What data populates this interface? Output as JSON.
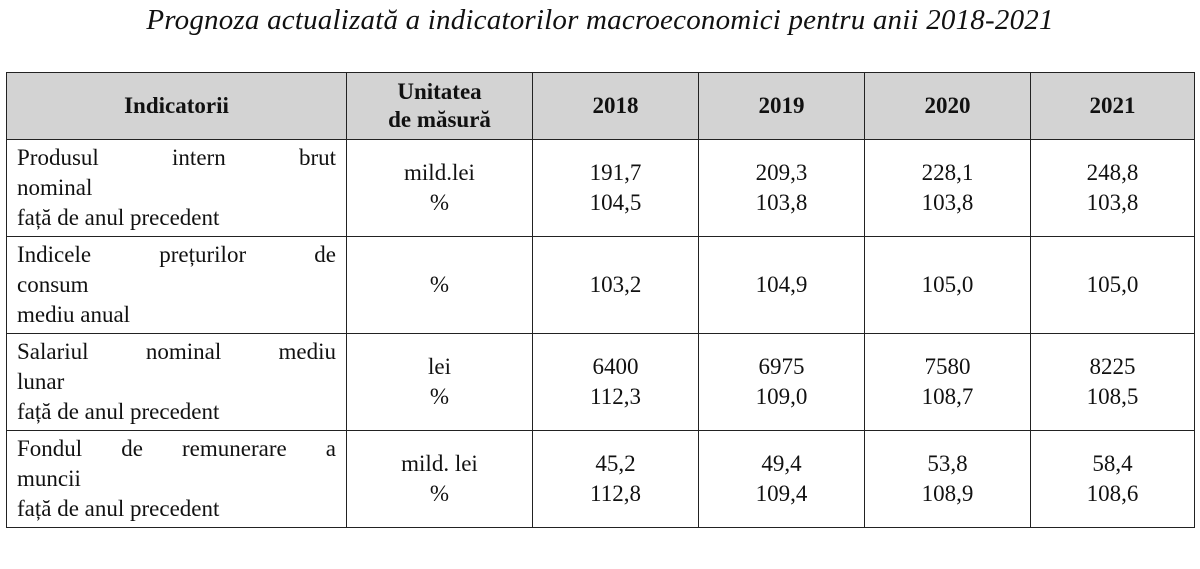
{
  "title": "Prognoza actualizată a indicatorilor macroeconomici pentru anii 2018-2021",
  "table": {
    "headers": {
      "indicator": "Indicatorii",
      "unit_line1": "Unitatea",
      "unit_line2": "de măsură",
      "years": [
        "2018",
        "2019",
        "2020",
        "2021"
      ]
    },
    "rows": [
      {
        "indicator_lines": [
          "Produsul intern brut",
          "nominal",
          "față de anul precedent"
        ],
        "units": [
          "mild.lei",
          "%"
        ],
        "values": [
          [
            "191,7",
            "104,5"
          ],
          [
            "209,3",
            "103,8"
          ],
          [
            "228,1",
            "103,8"
          ],
          [
            "248,8",
            "103,8"
          ]
        ]
      },
      {
        "indicator_lines": [
          "Indicele prețurilor de",
          "consum",
          "mediu anual"
        ],
        "units": [
          "%"
        ],
        "values": [
          [
            "103,2"
          ],
          [
            "104,9"
          ],
          [
            "105,0"
          ],
          [
            "105,0"
          ]
        ]
      },
      {
        "indicator_lines": [
          "Salariul nominal mediu",
          "lunar",
          "față de anul precedent"
        ],
        "units": [
          "lei",
          "%"
        ],
        "values": [
          [
            "6400",
            "112,3"
          ],
          [
            "6975",
            "109,0"
          ],
          [
            "7580",
            "108,7"
          ],
          [
            "8225",
            "108,5"
          ]
        ]
      },
      {
        "indicator_lines": [
          "Fondul de remunerare a",
          "muncii",
          "față de anul precedent"
        ],
        "units": [
          "mild. lei",
          "%"
        ],
        "values": [
          [
            "45,2",
            "112,8"
          ],
          [
            "49,4",
            "109,4"
          ],
          [
            "53,8",
            "108,9"
          ],
          [
            "58,4",
            "108,6"
          ]
        ]
      }
    ]
  },
  "colors": {
    "header_bg": "#d3d3d3",
    "border": "#222222",
    "text": "#111111"
  }
}
